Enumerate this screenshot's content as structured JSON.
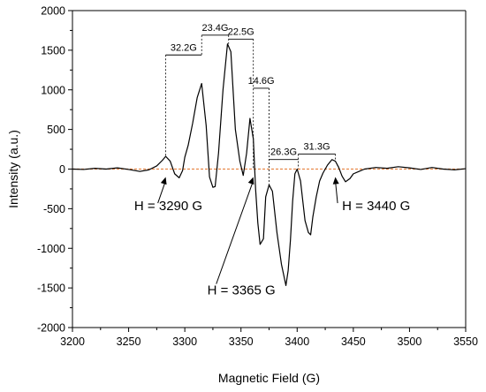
{
  "chart_data": {
    "type": "line",
    "xlabel": "Magnetic Field (G)",
    "ylabel": "Intensity (a.u.)",
    "xlim": [
      3200,
      3550
    ],
    "ylim": [
      -2000,
      2000
    ],
    "xticks": [
      "3200",
      "3250",
      "3300",
      "3350",
      "3400",
      "3450",
      "3500",
      "3550"
    ],
    "yticks": [
      "2000",
      "1500",
      "1000",
      "500",
      "0",
      "-500",
      "-1000",
      "-1500",
      "-2000"
    ],
    "baseline": 0,
    "series": [
      {
        "color": "#000000",
        "x": [
          3200,
          3210,
          3220,
          3230,
          3240,
          3250,
          3260,
          3268,
          3275,
          3280,
          3283,
          3287,
          3291,
          3295,
          3298,
          3300,
          3303,
          3307,
          3311,
          3315,
          3319,
          3322,
          3325,
          3327,
          3330,
          3334,
          3338,
          3341,
          3345,
          3349,
          3352,
          3355,
          3358,
          3361,
          3363,
          3365,
          3367,
          3370,
          3372,
          3375,
          3378,
          3382,
          3386,
          3390,
          3392,
          3394,
          3396,
          3398,
          3400,
          3403,
          3405,
          3407,
          3410,
          3412,
          3414,
          3417,
          3420,
          3423,
          3427,
          3431,
          3434,
          3437,
          3440,
          3443,
          3447,
          3450,
          3455,
          3460,
          3470,
          3480,
          3490,
          3500,
          3510,
          3520,
          3530,
          3540,
          3550
        ],
        "y": [
          0,
          -5,
          10,
          0,
          15,
          -5,
          -30,
          -10,
          40,
          110,
          160,
          100,
          -60,
          -110,
          -20,
          150,
          300,
          580,
          900,
          1080,
          550,
          -100,
          -230,
          -220,
          200,
          1000,
          1580,
          1480,
          500,
          100,
          -80,
          200,
          640,
          380,
          -250,
          -680,
          -950,
          -880,
          -350,
          -200,
          -280,
          -800,
          -1200,
          -1470,
          -1280,
          -900,
          -400,
          -60,
          0,
          -150,
          -400,
          -650,
          -800,
          -830,
          -600,
          -350,
          -150,
          -50,
          50,
          120,
          100,
          20,
          -90,
          -160,
          -120,
          -60,
          -30,
          0,
          20,
          10,
          30,
          15,
          -5,
          20,
          0,
          -10,
          5
        ]
      }
    ],
    "annotations": {
      "spacings": [
        {
          "label": "32.2G",
          "x1": 3283,
          "x2": 3315,
          "y": 1440
        },
        {
          "label": "23.4G",
          "x1": 3315,
          "x2": 3339,
          "y": 1690
        },
        {
          "label": "22.5G",
          "x1": 3339,
          "x2": 3361,
          "y": 1640
        },
        {
          "label": "14.6G",
          "x1": 3361,
          "x2": 3375,
          "y": 1020
        },
        {
          "label": "26.3G",
          "x1": 3375,
          "x2": 3401,
          "y": 120
        },
        {
          "label": "31.3G",
          "x1": 3401,
          "x2": 3434,
          "y": 190
        }
      ],
      "markers": [
        {
          "label": "H = 3290 G",
          "field": 3283,
          "text_x": 3255,
          "text_y": -520
        },
        {
          "label": "H = 3365 G",
          "field": 3361,
          "text_x": 3320,
          "text_y": -1580
        },
        {
          "label": "H = 3440 G",
          "field": 3434,
          "text_x": 3440,
          "text_y": -520
        }
      ]
    }
  }
}
